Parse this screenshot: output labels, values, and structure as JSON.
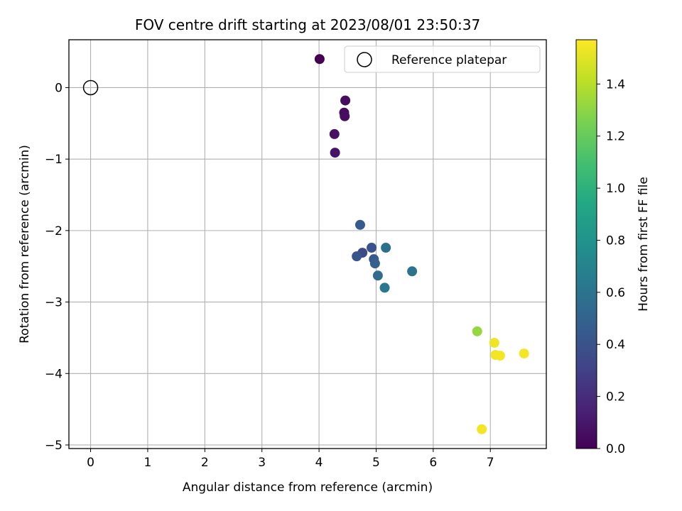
{
  "chart_data": {
    "type": "scatter",
    "title": "FOV centre drift starting at 2023/08/01 23:50:37",
    "xlabel": "Angular distance from reference (arcmin)",
    "ylabel": "Rotation from reference (arcmin)",
    "xlim": [
      -0.38,
      7.98
    ],
    "ylim": [
      -5.05,
      0.67
    ],
    "xticks": [
      0,
      1,
      2,
      3,
      4,
      5,
      6,
      7
    ],
    "yticks": [
      0,
      -1,
      -2,
      -3,
      -4,
      -5
    ],
    "xtick_labels": [
      "0",
      "1",
      "2",
      "3",
      "4",
      "5",
      "6",
      "7"
    ],
    "ytick_labels": [
      "0",
      "−1",
      "−2",
      "−3",
      "−4",
      "−5"
    ],
    "grid": true,
    "colormap": "viridis",
    "legend": {
      "position": "top-right",
      "entries": [
        "Reference platepar"
      ]
    },
    "reference": {
      "x": 0,
      "y": 0
    },
    "colorbar": {
      "label": "Hours from first FF file",
      "range": [
        0.0,
        1.57
      ],
      "ticks": [
        0.0,
        0.2,
        0.4,
        0.6,
        0.8,
        1.0,
        1.2,
        1.4
      ],
      "tick_labels": [
        "0.0",
        "0.2",
        "0.4",
        "0.6",
        "0.8",
        "1.0",
        "1.2",
        "1.4"
      ]
    },
    "points": [
      {
        "x": 4.01,
        "y": 0.4,
        "hours": 0.0
      },
      {
        "x": 4.46,
        "y": -0.18,
        "hours": 0.05
      },
      {
        "x": 4.44,
        "y": -0.35,
        "hours": 0.05
      },
      {
        "x": 4.45,
        "y": -0.4,
        "hours": 0.06
      },
      {
        "x": 4.27,
        "y": -0.65,
        "hours": 0.07
      },
      {
        "x": 4.28,
        "y": -0.91,
        "hours": 0.08
      },
      {
        "x": 4.72,
        "y": -1.92,
        "hours": 0.45
      },
      {
        "x": 4.92,
        "y": -2.24,
        "hours": 0.4
      },
      {
        "x": 5.17,
        "y": -2.24,
        "hours": 0.58
      },
      {
        "x": 4.76,
        "y": -2.31,
        "hours": 0.35
      },
      {
        "x": 4.66,
        "y": -2.36,
        "hours": 0.42
      },
      {
        "x": 4.96,
        "y": -2.4,
        "hours": 0.44
      },
      {
        "x": 4.98,
        "y": -2.46,
        "hours": 0.47
      },
      {
        "x": 5.03,
        "y": -2.63,
        "hours": 0.55
      },
      {
        "x": 5.63,
        "y": -2.57,
        "hours": 0.6
      },
      {
        "x": 5.15,
        "y": -2.8,
        "hours": 0.62
      },
      {
        "x": 6.77,
        "y": -3.41,
        "hours": 1.32
      },
      {
        "x": 7.07,
        "y": -3.57,
        "hours": 1.53
      },
      {
        "x": 7.09,
        "y": -3.74,
        "hours": 1.54
      },
      {
        "x": 7.17,
        "y": -3.75,
        "hours": 1.55
      },
      {
        "x": 7.59,
        "y": -3.72,
        "hours": 1.55
      },
      {
        "x": 6.85,
        "y": -4.78,
        "hours": 1.54
      }
    ]
  }
}
